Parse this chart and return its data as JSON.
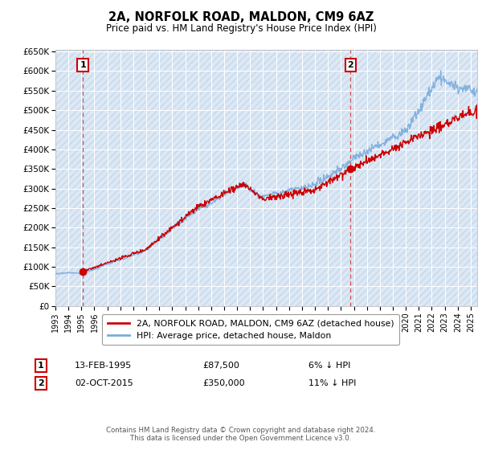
{
  "title": "2A, NORFOLK ROAD, MALDON, CM9 6AZ",
  "subtitle": "Price paid vs. HM Land Registry's House Price Index (HPI)",
  "x_start": 1993.0,
  "x_end": 2025.5,
  "y_min": 0,
  "y_max": 650000,
  "y_ticks": [
    0,
    50000,
    100000,
    150000,
    200000,
    250000,
    300000,
    350000,
    400000,
    450000,
    500000,
    550000,
    600000,
    650000
  ],
  "y_tick_labels": [
    "£0",
    "£50K",
    "£100K",
    "£150K",
    "£200K",
    "£250K",
    "£300K",
    "£350K",
    "£400K",
    "£450K",
    "£500K",
    "£550K",
    "£600K",
    "£650K"
  ],
  "x_ticks": [
    1993,
    1994,
    1995,
    1996,
    1997,
    1998,
    1999,
    2000,
    2001,
    2002,
    2003,
    2004,
    2005,
    2006,
    2007,
    2008,
    2009,
    2010,
    2011,
    2012,
    2013,
    2014,
    2015,
    2016,
    2017,
    2018,
    2019,
    2020,
    2021,
    2022,
    2023,
    2024,
    2025
  ],
  "purchase1_x": 1995.11,
  "purchase1_y": 87500,
  "purchase2_x": 2015.75,
  "purchase2_y": 350000,
  "property_color": "#cc0000",
  "hpi_color": "#7aacdc",
  "plot_bg_color": "#dde8f5",
  "hatch_color": "#c5d8ea",
  "grid_color": "#ffffff",
  "legend_label_property": "2A, NORFOLK ROAD, MALDON, CM9 6AZ (detached house)",
  "legend_label_hpi": "HPI: Average price, detached house, Maldon",
  "purchase1_label": "1",
  "purchase2_label": "2",
  "purchase1_date": "13-FEB-1995",
  "purchase1_price": "£87,500",
  "purchase1_hpi": "6% ↓ HPI",
  "purchase2_date": "02-OCT-2015",
  "purchase2_price": "£350,000",
  "purchase2_hpi": "11% ↓ HPI",
  "footer": "Contains HM Land Registry data © Crown copyright and database right 2024.\nThis data is licensed under the Open Government Licence v3.0."
}
